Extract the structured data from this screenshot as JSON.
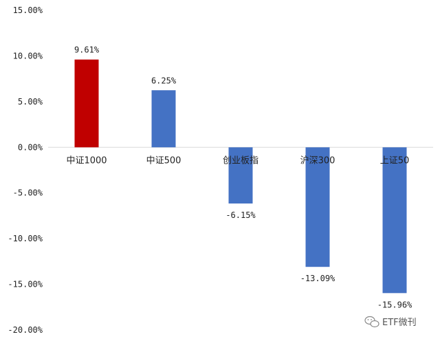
{
  "chart_data": {
    "type": "bar",
    "categories": [
      "中证1000",
      "中证500",
      "创业板指",
      "沪深300",
      "上证50"
    ],
    "values": [
      9.61,
      6.25,
      -6.15,
      -13.09,
      -15.96
    ],
    "data_labels": [
      "9.61%",
      "6.25%",
      "-6.15%",
      "-13.09%",
      "-15.96%"
    ],
    "ylim": [
      -20,
      15
    ],
    "yticks": [
      15,
      10,
      5,
      0,
      -5,
      -10,
      -15,
      -20
    ],
    "ytick_labels": [
      "15.00%",
      "10.00%",
      "5.00%",
      "0.00%",
      "-5.00%",
      "-10.00%",
      "-15.00%",
      "-20.00%"
    ],
    "title": "",
    "xlabel": "",
    "ylabel": "",
    "grid": false,
    "legend": "none",
    "colors": [
      "#c00000",
      "#4472c4",
      "#4472c4",
      "#4472c4",
      "#4472c4"
    ]
  },
  "watermark": {
    "text": "ETF微刊",
    "icon": "wechat-icon"
  }
}
